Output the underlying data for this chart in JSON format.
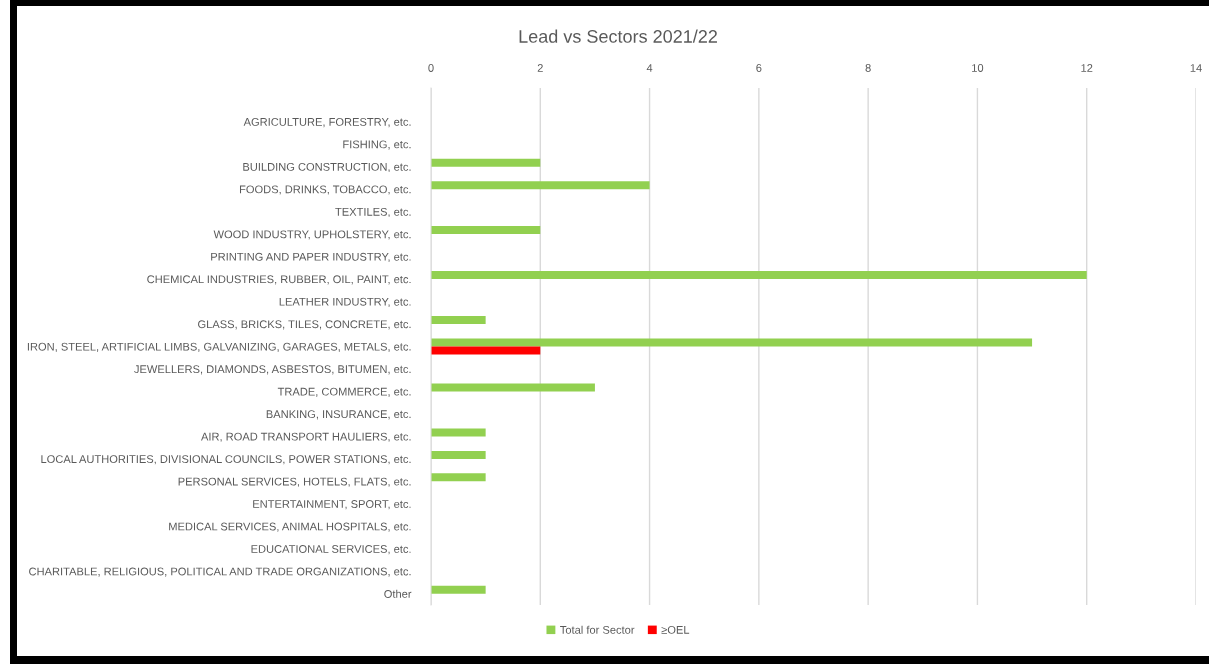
{
  "chart_data": {
    "type": "bar",
    "orientation": "horizontal",
    "title": "Lead vs Sectors 2021/22",
    "categories": [
      null,
      "AGRICULTURE, FORESTRY, etc.",
      "FISHING, etc.",
      "BUILDING CONSTRUCTION, etc.",
      "FOODS, DRINKS, TOBACCO, etc.",
      "TEXTILES, etc.",
      "WOOD INDUSTRY, UPHOLSTERY, etc.",
      "PRINTING AND PAPER INDUSTRY, etc.",
      "CHEMICAL INDUSTRIES, RUBBER, OIL, PAINT, etc.",
      "LEATHER INDUSTRY, etc.",
      "GLASS, BRICKS, TILES, CONCRETE, etc.",
      "IRON, STEEL, ARTIFICIAL LIMBS, GALVANIZING, GARAGES, METALS, etc.",
      "JEWELLERS, DIAMONDS, ASBESTOS, BITUMEN, etc.",
      "TRADE, COMMERCE, etc.",
      "BANKING, INSURANCE, etc.",
      "AIR, ROAD TRANSPORT HAULIERS, etc.",
      "LOCAL AUTHORITIES, DIVISIONAL COUNCILS, POWER STATIONS, etc.",
      "PERSONAL SERVICES, HOTELS, FLATS, etc.",
      "ENTERTAINMENT, SPORT, etc.",
      "MEDICAL SERVICES, ANIMAL HOSPITALS, etc.",
      "EDUCATIONAL SERVICES, etc.",
      "CHARITABLE, RELIGIOUS, POLITICAL AND TRADE ORGANIZATIONS, etc.",
      "Other"
    ],
    "series": [
      {
        "name": "Total for Sector",
        "color": "#92d050",
        "values": [
          null,
          0,
          0,
          2,
          4,
          0,
          2,
          0,
          12,
          0,
          1,
          11,
          0,
          3,
          0,
          1,
          1,
          1,
          0,
          0,
          0,
          0,
          1
        ]
      },
      {
        "name": "≥OEL",
        "color": "#ff0000",
        "values": [
          null,
          0,
          0,
          0,
          0,
          0,
          0,
          0,
          0,
          0,
          0,
          2,
          0,
          0,
          0,
          0,
          0,
          0,
          0,
          0,
          0,
          0,
          0
        ]
      }
    ],
    "xlim": [
      0,
      14
    ],
    "xticks": [
      0,
      2,
      4,
      6,
      8,
      10,
      12,
      14
    ],
    "grid": "x",
    "legend": "bottom"
  }
}
